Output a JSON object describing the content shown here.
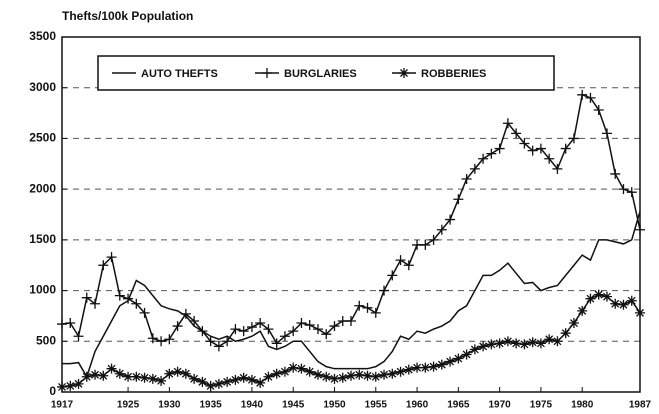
{
  "chart_data": {
    "type": "line",
    "title": "Thefts/100k Population",
    "x": [
      1917,
      1918,
      1919,
      1920,
      1921,
      1922,
      1923,
      1924,
      1925,
      1926,
      1927,
      1928,
      1929,
      1930,
      1931,
      1932,
      1933,
      1934,
      1935,
      1936,
      1937,
      1938,
      1939,
      1940,
      1941,
      1942,
      1943,
      1944,
      1945,
      1946,
      1947,
      1948,
      1949,
      1950,
      1951,
      1952,
      1953,
      1954,
      1955,
      1956,
      1957,
      1958,
      1959,
      1960,
      1961,
      1962,
      1963,
      1964,
      1965,
      1966,
      1967,
      1968,
      1969,
      1970,
      1971,
      1972,
      1973,
      1974,
      1975,
      1976,
      1977,
      1978,
      1979,
      1980,
      1981,
      1982,
      1983,
      1984,
      1985,
      1986,
      1987
    ],
    "series": [
      {
        "name": "AUTO THEFTS",
        "color": "#111111",
        "marker": "none",
        "values": [
          280,
          280,
          290,
          150,
          400,
          550,
          700,
          850,
          900,
          1100,
          1050,
          950,
          850,
          820,
          800,
          750,
          650,
          600,
          550,
          520,
          550,
          500,
          520,
          550,
          600,
          450,
          420,
          450,
          500,
          500,
          400,
          300,
          250,
          230,
          230,
          230,
          230,
          230,
          250,
          300,
          400,
          550,
          520,
          600,
          580,
          620,
          650,
          700,
          800,
          850,
          1000,
          1150,
          1150,
          1200,
          1270,
          1170,
          1070,
          1080,
          1000,
          1030,
          1050,
          1150,
          1250,
          1350,
          1300,
          1500,
          1500,
          1480,
          1460,
          1500,
          1780
        ]
      },
      {
        "name": "BURGLARIES",
        "color": "#111111",
        "marker": "plus",
        "values": [
          670,
          680,
          550,
          930,
          870,
          1250,
          1330,
          950,
          920,
          870,
          780,
          530,
          500,
          520,
          650,
          770,
          700,
          600,
          500,
          450,
          500,
          620,
          600,
          640,
          680,
          620,
          480,
          550,
          600,
          680,
          660,
          620,
          570,
          650,
          700,
          700,
          850,
          830,
          780,
          1000,
          1150,
          1300,
          1250,
          1450,
          1450,
          1500,
          1600,
          1700,
          1900,
          2100,
          2200,
          2300,
          2350,
          2400,
          2650,
          2550,
          2450,
          2380,
          2400,
          2300,
          2200,
          2400,
          2500,
          2930,
          2900,
          2780,
          2550,
          2150,
          2000,
          1970,
          1600
        ]
      },
      {
        "name": "ROBBERIES",
        "color": "#111111",
        "marker": "star",
        "values": [
          50,
          60,
          80,
          150,
          170,
          160,
          230,
          180,
          150,
          150,
          140,
          130,
          110,
          180,
          200,
          180,
          130,
          100,
          60,
          80,
          100,
          120,
          140,
          120,
          90,
          150,
          180,
          200,
          240,
          230,
          200,
          170,
          150,
          130,
          140,
          160,
          170,
          160,
          150,
          170,
          180,
          200,
          220,
          240,
          240,
          250,
          270,
          300,
          330,
          370,
          420,
          450,
          470,
          480,
          500,
          480,
          470,
          490,
          480,
          520,
          500,
          580,
          680,
          800,
          920,
          960,
          940,
          870,
          860,
          900,
          780
        ]
      }
    ],
    "xlim": [
      1917,
      1987
    ],
    "xticks": [
      1917,
      1925,
      1930,
      1935,
      1940,
      1945,
      1950,
      1955,
      1960,
      1965,
      1970,
      1975,
      1980,
      1987
    ],
    "ylim": [
      0,
      3500
    ],
    "yticks": [
      0,
      500,
      1000,
      1500,
      2000,
      2500,
      3000,
      3500
    ],
    "grid": true,
    "legend": "top-left"
  }
}
